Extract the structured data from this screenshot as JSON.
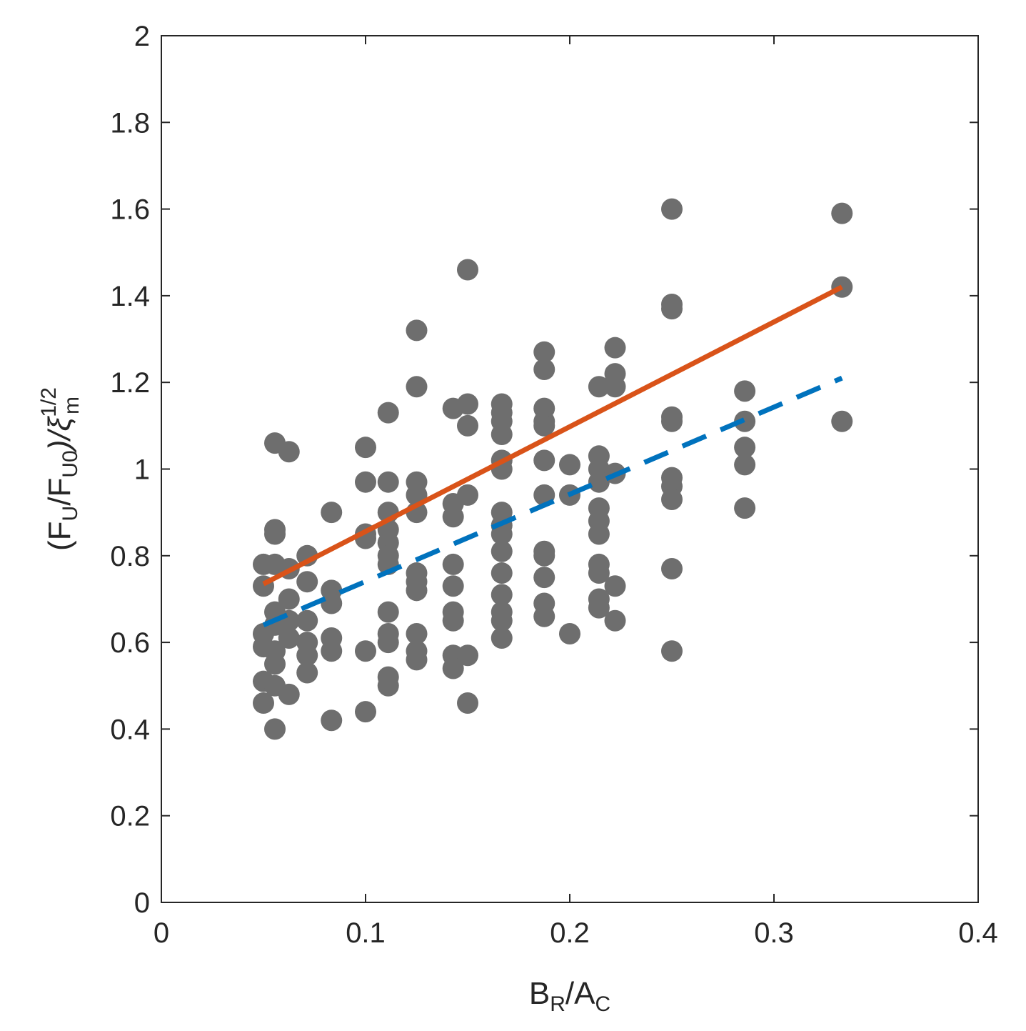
{
  "chart_data": {
    "type": "scatter",
    "xlabel": {
      "main1": "B",
      "sub1": "R",
      "main2": "/A",
      "sub2": "C"
    },
    "ylabel": {
      "p1": "(F",
      "s1": "U",
      "p2": "/F",
      "s2": "U0",
      "p3": ")/ξ",
      "sup": "1/2",
      "sub": "m"
    },
    "xlim": [
      0,
      0.4
    ],
    "ylim": [
      0,
      2
    ],
    "xticks": [
      "0",
      "0.1",
      "0.2",
      "0.3",
      "0.4"
    ],
    "yticks": [
      "0",
      "0.2",
      "0.4",
      "0.6",
      "0.8",
      "1",
      "1.2",
      "1.4",
      "1.6",
      "1.8",
      "2"
    ],
    "grid": false,
    "colors": {
      "points": "#6e6e6e",
      "solid_line": "#d95319",
      "dashed_line": "#0072bd",
      "axes": "#262626"
    },
    "points": [
      [
        0.05,
        0.78
      ],
      [
        0.05,
        0.73
      ],
      [
        0.05,
        0.62
      ],
      [
        0.05,
        0.59
      ],
      [
        0.05,
        0.51
      ],
      [
        0.05,
        0.46
      ],
      [
        0.0556,
        1.06
      ],
      [
        0.0556,
        0.86
      ],
      [
        0.0556,
        0.85
      ],
      [
        0.0556,
        0.78
      ],
      [
        0.0556,
        0.67
      ],
      [
        0.0556,
        0.64
      ],
      [
        0.0556,
        0.58
      ],
      [
        0.0556,
        0.55
      ],
      [
        0.0556,
        0.5
      ],
      [
        0.0556,
        0.4
      ],
      [
        0.0625,
        1.04
      ],
      [
        0.0625,
        0.77
      ],
      [
        0.0625,
        0.7
      ],
      [
        0.0625,
        0.65
      ],
      [
        0.0625,
        0.61
      ],
      [
        0.0625,
        0.48
      ],
      [
        0.0714,
        0.8
      ],
      [
        0.0714,
        0.74
      ],
      [
        0.0714,
        0.65
      ],
      [
        0.0714,
        0.6
      ],
      [
        0.0714,
        0.57
      ],
      [
        0.0714,
        0.53
      ],
      [
        0.0833,
        0.9
      ],
      [
        0.0833,
        0.72
      ],
      [
        0.0833,
        0.69
      ],
      [
        0.0833,
        0.61
      ],
      [
        0.0833,
        0.58
      ],
      [
        0.0833,
        0.42
      ],
      [
        0.1,
        1.05
      ],
      [
        0.1,
        0.97
      ],
      [
        0.1,
        0.85
      ],
      [
        0.1,
        0.84
      ],
      [
        0.1,
        0.58
      ],
      [
        0.1,
        0.44
      ],
      [
        0.1111,
        1.13
      ],
      [
        0.1111,
        0.97
      ],
      [
        0.1111,
        0.9
      ],
      [
        0.1111,
        0.86
      ],
      [
        0.1111,
        0.83
      ],
      [
        0.1111,
        0.8
      ],
      [
        0.1111,
        0.78
      ],
      [
        0.1111,
        0.67
      ],
      [
        0.1111,
        0.62
      ],
      [
        0.1111,
        0.6
      ],
      [
        0.1111,
        0.52
      ],
      [
        0.1111,
        0.5
      ],
      [
        0.125,
        1.32
      ],
      [
        0.125,
        1.19
      ],
      [
        0.125,
        0.97
      ],
      [
        0.125,
        0.94
      ],
      [
        0.125,
        0.9
      ],
      [
        0.125,
        0.76
      ],
      [
        0.125,
        0.74
      ],
      [
        0.125,
        0.72
      ],
      [
        0.125,
        0.62
      ],
      [
        0.125,
        0.58
      ],
      [
        0.125,
        0.56
      ],
      [
        0.1429,
        1.14
      ],
      [
        0.1429,
        0.92
      ],
      [
        0.1429,
        0.89
      ],
      [
        0.1429,
        0.78
      ],
      [
        0.1429,
        0.73
      ],
      [
        0.1429,
        0.67
      ],
      [
        0.1429,
        0.65
      ],
      [
        0.1429,
        0.57
      ],
      [
        0.1429,
        0.54
      ],
      [
        0.15,
        1.46
      ],
      [
        0.15,
        1.15
      ],
      [
        0.15,
        1.1
      ],
      [
        0.15,
        0.94
      ],
      [
        0.15,
        0.57
      ],
      [
        0.15,
        0.46
      ],
      [
        0.1667,
        1.15
      ],
      [
        0.1667,
        1.13
      ],
      [
        0.1667,
        1.11
      ],
      [
        0.1667,
        1.08
      ],
      [
        0.1667,
        1.02
      ],
      [
        0.1667,
        1.0
      ],
      [
        0.1667,
        0.9
      ],
      [
        0.1667,
        0.87
      ],
      [
        0.1667,
        0.85
      ],
      [
        0.1667,
        0.81
      ],
      [
        0.1667,
        0.76
      ],
      [
        0.1667,
        0.71
      ],
      [
        0.1667,
        0.67
      ],
      [
        0.1667,
        0.65
      ],
      [
        0.1667,
        0.61
      ],
      [
        0.1875,
        1.27
      ],
      [
        0.1875,
        1.23
      ],
      [
        0.1875,
        1.14
      ],
      [
        0.1875,
        1.11
      ],
      [
        0.1875,
        1.1
      ],
      [
        0.1875,
        1.02
      ],
      [
        0.1875,
        0.94
      ],
      [
        0.1875,
        0.81
      ],
      [
        0.1875,
        0.8
      ],
      [
        0.1875,
        0.75
      ],
      [
        0.1875,
        0.69
      ],
      [
        0.1875,
        0.66
      ],
      [
        0.2,
        1.01
      ],
      [
        0.2,
        0.94
      ],
      [
        0.2,
        0.62
      ],
      [
        0.2143,
        1.19
      ],
      [
        0.2143,
        1.03
      ],
      [
        0.2143,
        1.0
      ],
      [
        0.2143,
        0.97
      ],
      [
        0.2143,
        0.91
      ],
      [
        0.2143,
        0.88
      ],
      [
        0.2143,
        0.85
      ],
      [
        0.2143,
        0.78
      ],
      [
        0.2143,
        0.76
      ],
      [
        0.2143,
        0.7
      ],
      [
        0.2143,
        0.68
      ],
      [
        0.2222,
        1.28
      ],
      [
        0.2222,
        1.22
      ],
      [
        0.2222,
        1.19
      ],
      [
        0.2222,
        0.99
      ],
      [
        0.2222,
        0.73
      ],
      [
        0.2222,
        0.65
      ],
      [
        0.25,
        1.6
      ],
      [
        0.25,
        1.38
      ],
      [
        0.25,
        1.37
      ],
      [
        0.25,
        1.12
      ],
      [
        0.25,
        1.11
      ],
      [
        0.25,
        0.98
      ],
      [
        0.25,
        0.96
      ],
      [
        0.25,
        0.93
      ],
      [
        0.25,
        0.77
      ],
      [
        0.25,
        0.58
      ],
      [
        0.2857,
        1.18
      ],
      [
        0.2857,
        1.11
      ],
      [
        0.2857,
        1.05
      ],
      [
        0.2857,
        1.01
      ],
      [
        0.2857,
        0.91
      ],
      [
        0.3333,
        1.59
      ],
      [
        0.3333,
        1.42
      ],
      [
        0.3333,
        1.11
      ]
    ],
    "series": [
      {
        "style": "solid",
        "x": [
          0.05,
          0.3333
        ],
        "y": [
          0.735,
          1.42
        ]
      },
      {
        "style": "dashed",
        "x": [
          0.05,
          0.3333
        ],
        "y": [
          0.64,
          1.21
        ]
      }
    ]
  }
}
